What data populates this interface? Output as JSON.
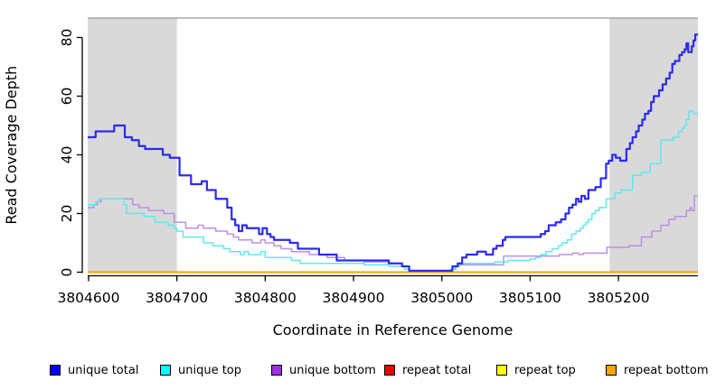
{
  "chart_data": {
    "type": "line",
    "subtype": "step-coverage-plot",
    "title": "",
    "xlabel": "Coordinate in Reference Genome",
    "ylabel": "Read Coverage Depth",
    "xlim": [
      3804599,
      3805290
    ],
    "ylim": [
      0,
      86
    ],
    "x_ticks": [
      3804600,
      3804700,
      3804800,
      3804900,
      3805000,
      3805100,
      3805200
    ],
    "y_ticks": [
      0,
      20,
      40,
      60,
      80
    ],
    "grid": false,
    "legend_position": "bottom",
    "shade_color": "#d9d9d9",
    "axis_color": "#000000",
    "shaded_regions": [
      {
        "from": 3804599,
        "to": 3804700
      },
      {
        "from": 3805190,
        "to": 3805290
      }
    ],
    "series": [
      {
        "name": "unique total",
        "color": "#2b2bef",
        "swatch": "#0000ee",
        "points": [
          [
            3804599,
            46
          ],
          [
            3804608,
            48
          ],
          [
            3804629,
            50
          ],
          [
            3804641,
            46
          ],
          [
            3804649,
            45
          ],
          [
            3804657,
            43
          ],
          [
            3804664,
            42
          ],
          [
            3804684,
            40
          ],
          [
            3804692,
            39
          ],
          [
            3804703,
            33
          ],
          [
            3804716,
            30
          ],
          [
            3804728,
            31
          ],
          [
            3804734,
            28
          ],
          [
            3804744,
            25
          ],
          [
            3804757,
            22
          ],
          [
            3804762,
            18
          ],
          [
            3804766,
            16
          ],
          [
            3804770,
            14
          ],
          [
            3804774,
            16
          ],
          [
            3804779,
            15
          ],
          [
            3804793,
            13
          ],
          [
            3804797,
            15
          ],
          [
            3804802,
            13
          ],
          [
            3804806,
            12
          ],
          [
            3804810,
            11
          ],
          [
            3804828,
            10
          ],
          [
            3804837,
            8
          ],
          [
            3804861,
            6
          ],
          [
            3804881,
            4
          ],
          [
            3804940,
            3
          ],
          [
            3804955,
            2
          ],
          [
            3804963,
            0.5
          ],
          [
            3805012,
            2
          ],
          [
            3805018,
            3
          ],
          [
            3805023,
            5
          ],
          [
            3805028,
            6
          ],
          [
            3805040,
            7
          ],
          [
            3805050,
            6
          ],
          [
            3805058,
            8
          ],
          [
            3805062,
            9
          ],
          [
            3805069,
            11
          ],
          [
            3805072,
            12
          ],
          [
            3805112,
            13
          ],
          [
            3805117,
            14
          ],
          [
            3805121,
            16
          ],
          [
            3805129,
            17
          ],
          [
            3805135,
            18
          ],
          [
            3805140,
            20
          ],
          [
            3805144,
            22
          ],
          [
            3805148,
            23
          ],
          [
            3805152,
            25
          ],
          [
            3805155,
            24
          ],
          [
            3805158,
            26
          ],
          [
            3805162,
            25
          ],
          [
            3805166,
            28
          ],
          [
            3805174,
            29
          ],
          [
            3805180,
            32
          ],
          [
            3805186,
            37
          ],
          [
            3805189,
            38
          ],
          [
            3805193,
            40
          ],
          [
            3805197,
            39
          ],
          [
            3805202,
            38
          ],
          [
            3805209,
            42
          ],
          [
            3805213,
            44
          ],
          [
            3805216,
            46
          ],
          [
            3805220,
            48
          ],
          [
            3805223,
            50
          ],
          [
            3805227,
            52
          ],
          [
            3805230,
            54
          ],
          [
            3805234,
            55
          ],
          [
            3805237,
            58
          ],
          [
            3805240,
            60
          ],
          [
            3805246,
            62
          ],
          [
            3805250,
            64
          ],
          [
            3805254,
            66
          ],
          [
            3805258,
            68
          ],
          [
            3805261,
            71
          ],
          [
            3805264,
            72
          ],
          [
            3805269,
            74
          ],
          [
            3805272,
            75
          ],
          [
            3805275,
            76
          ],
          [
            3805277,
            78
          ],
          [
            3805279,
            75
          ],
          [
            3805283,
            77
          ],
          [
            3805285,
            79
          ],
          [
            3805287,
            81
          ]
        ]
      },
      {
        "name": "unique top",
        "color": "#5fe8ef",
        "swatch": "#00ffff",
        "points": [
          [
            3804599,
            23
          ],
          [
            3804608,
            24
          ],
          [
            3804612,
            25
          ],
          [
            3804640,
            23
          ],
          [
            3804643,
            20
          ],
          [
            3804663,
            19
          ],
          [
            3804675,
            17
          ],
          [
            3804690,
            16
          ],
          [
            3804697,
            15
          ],
          [
            3804700,
            14
          ],
          [
            3804707,
            12
          ],
          [
            3804730,
            10
          ],
          [
            3804741,
            9
          ],
          [
            3804753,
            8
          ],
          [
            3804760,
            7
          ],
          [
            3804772,
            6
          ],
          [
            3804776,
            7
          ],
          [
            3804781,
            6
          ],
          [
            3804795,
            7
          ],
          [
            3804800,
            5
          ],
          [
            3804830,
            4
          ],
          [
            3804840,
            3
          ],
          [
            3804912,
            2.5
          ],
          [
            3804940,
            2
          ],
          [
            3804958,
            1
          ],
          [
            3804963,
            0.5
          ],
          [
            3805010,
            1
          ],
          [
            3805016,
            2
          ],
          [
            3805020,
            3
          ],
          [
            3805060,
            3.5
          ],
          [
            3805075,
            4
          ],
          [
            3805100,
            4.5
          ],
          [
            3805106,
            5
          ],
          [
            3805112,
            6
          ],
          [
            3805118,
            7
          ],
          [
            3805125,
            8
          ],
          [
            3805132,
            9
          ],
          [
            3805136,
            10
          ],
          [
            3805142,
            11
          ],
          [
            3805147,
            13
          ],
          [
            3805152,
            14
          ],
          [
            3805157,
            15
          ],
          [
            3805160,
            16
          ],
          [
            3805163,
            17
          ],
          [
            3805166,
            18
          ],
          [
            3805170,
            20
          ],
          [
            3805174,
            21
          ],
          [
            3805178,
            22
          ],
          [
            3805186,
            25
          ],
          [
            3805196,
            27
          ],
          [
            3805203,
            28
          ],
          [
            3805216,
            33
          ],
          [
            3805226,
            34
          ],
          [
            3805236,
            37
          ],
          [
            3805248,
            45
          ],
          [
            3805262,
            46
          ],
          [
            3805268,
            48
          ],
          [
            3805272,
            49
          ],
          [
            3805275,
            50
          ],
          [
            3805277,
            52
          ],
          [
            3805280,
            55
          ],
          [
            3805285,
            54
          ]
        ]
      },
      {
        "name": "unique bottom",
        "color": "#bd8fe3",
        "swatch": "#9b30dc",
        "points": [
          [
            3804599,
            22
          ],
          [
            3804606,
            23
          ],
          [
            3804610,
            24
          ],
          [
            3804614,
            25
          ],
          [
            3804650,
            23
          ],
          [
            3804657,
            22
          ],
          [
            3804668,
            21
          ],
          [
            3804685,
            20
          ],
          [
            3804697,
            17
          ],
          [
            3804710,
            15
          ],
          [
            3804724,
            16
          ],
          [
            3804730,
            15
          ],
          [
            3804744,
            14
          ],
          [
            3804757,
            13
          ],
          [
            3804764,
            12
          ],
          [
            3804770,
            11
          ],
          [
            3804785,
            10
          ],
          [
            3804795,
            11
          ],
          [
            3804800,
            10
          ],
          [
            3804810,
            9
          ],
          [
            3804818,
            8
          ],
          [
            3804830,
            7
          ],
          [
            3804850,
            6
          ],
          [
            3804870,
            5
          ],
          [
            3804890,
            4
          ],
          [
            3804912,
            3.5
          ],
          [
            3804940,
            3
          ],
          [
            3804955,
            2
          ],
          [
            3804963,
            0.5
          ],
          [
            3805010,
            1
          ],
          [
            3805015,
            2
          ],
          [
            3805020,
            2.5
          ],
          [
            3805070,
            5.5
          ],
          [
            3805133,
            6
          ],
          [
            3805148,
            6.5
          ],
          [
            3805155,
            6
          ],
          [
            3805160,
            6.5
          ],
          [
            3805187,
            8.5
          ],
          [
            3805212,
            9
          ],
          [
            3805226,
            12
          ],
          [
            3805238,
            14
          ],
          [
            3805248,
            16
          ],
          [
            3805257,
            18
          ],
          [
            3805264,
            19
          ],
          [
            3805277,
            21
          ],
          [
            3805281,
            22
          ],
          [
            3805283,
            21
          ],
          [
            3805286,
            26
          ]
        ]
      },
      {
        "name": "repeat total",
        "color": "#ee0000",
        "swatch": "#ee0000",
        "points": [
          [
            3804599,
            0
          ],
          [
            3805290,
            0
          ]
        ]
      },
      {
        "name": "repeat top",
        "color": "#ffff00",
        "swatch": "#ffff00",
        "points": [
          [
            3804599,
            0
          ],
          [
            3805290,
            0
          ]
        ]
      },
      {
        "name": "repeat bottom",
        "color": "#ffa500",
        "swatch": "#ffa500",
        "points": [
          [
            3804599,
            0
          ],
          [
            3805290,
            0
          ]
        ]
      }
    ]
  }
}
